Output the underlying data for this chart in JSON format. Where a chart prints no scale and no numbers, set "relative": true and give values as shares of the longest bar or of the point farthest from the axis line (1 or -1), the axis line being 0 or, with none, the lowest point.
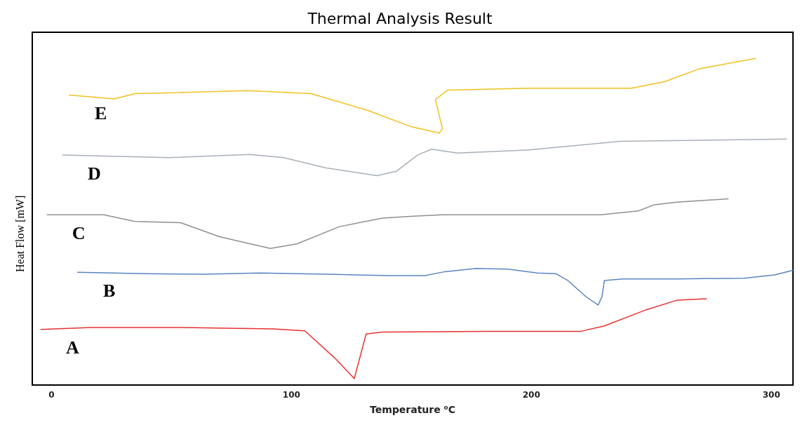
{
  "chart_data": {
    "type": "line",
    "title": "Thermal Analysis Result",
    "xlabel": "Temperature ⁰C",
    "ylabel": "Heat Flow [mW]",
    "relative": true,
    "xlim": [
      -8,
      309
    ],
    "xticks": [
      0,
      100,
      200,
      300
    ],
    "grid": false,
    "legend": false,
    "marker": "none",
    "line_style": "solid",
    "series": [
      {
        "name": "E",
        "color": "#f0c020",
        "x": [
          7.4,
          26.2,
          34.7,
          81.8,
          108.2,
          132.1,
          149.8,
          160.7,
          161.6,
          162.9,
          160.0,
          165.2,
          199.3,
          241.8,
          255.7,
          269.9,
          293.4
        ],
        "values": [
          0.888,
          0.876,
          0.892,
          0.901,
          0.892,
          0.84,
          0.791,
          0.773,
          0.771,
          0.785,
          0.874,
          0.903,
          0.909,
          0.909,
          0.929,
          0.968,
          1
        ]
      },
      {
        "name": "D",
        "color": "#a8b0b8",
        "x": [
          4.7,
          48.5,
          82.6,
          96.8,
          114.1,
          135.7,
          143.9,
          152.5,
          158.4,
          169.2,
          199.3,
          237.0,
          306.3
        ],
        "values": [
          0.704,
          0.696,
          0.706,
          0.696,
          0.665,
          0.641,
          0.655,
          0.704,
          0.722,
          0.71,
          0.72,
          0.746,
          0.753
        ]
      },
      {
        "name": "C",
        "color": "#909090",
        "x": [
          -1.8,
          21.8,
          34.7,
          53.8,
          70.0,
          91.2,
          102.3,
          120.0,
          138.0,
          150.8,
          163.0,
          228.9,
          244.6,
          251.3,
          260.5,
          282.0
        ],
        "values": [
          0.521,
          0.521,
          0.501,
          0.497,
          0.454,
          0.418,
          0.432,
          0.485,
          0.511,
          0.517,
          0.521,
          0.521,
          0.533,
          0.552,
          0.56,
          0.57
        ]
      },
      {
        "name": "B",
        "color": "#5b84c4",
        "x": [
          10.9,
          39.7,
          63.2,
          86.8,
          114.8,
          141.0,
          155.7,
          163.9,
          177.0,
          190.2,
          202.5,
          210.1,
          215.2,
          222.8,
          227.8,
          229.4,
          230.4,
          238.0,
          260.8,
          288.6,
          301.3,
          308.9
        ],
        "values": [
          0.345,
          0.341,
          0.339,
          0.343,
          0.339,
          0.335,
          0.335,
          0.347,
          0.357,
          0.355,
          0.343,
          0.341,
          0.32,
          0.27,
          0.245,
          0.27,
          0.32,
          0.325,
          0.325,
          0.327,
          0.337,
          0.351
        ]
      },
      {
        "name": "A",
        "color": "#e83030",
        "x": [
          -4.4,
          16.2,
          54.4,
          92.6,
          105.6,
          118.0,
          126.2,
          131.1,
          137.7,
          180.3,
          220.3,
          230.4,
          248.1,
          260.8,
          272.9
        ],
        "values": [
          0.17,
          0.176,
          0.176,
          0.172,
          0.166,
          0.083,
          0.02,
          0.156,
          0.162,
          0.164,
          0.164,
          0.181,
          0.231,
          0.26,
          0.264
        ]
      }
    ]
  }
}
